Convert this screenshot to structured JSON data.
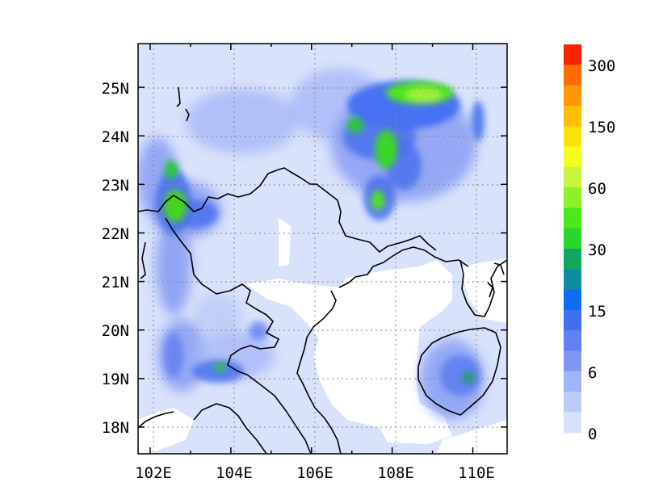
{
  "chart_data": {
    "type": "heatmap",
    "map": true,
    "grid": true,
    "lon_range": [
      101.7,
      110.85
    ],
    "lat_range": [
      17.45,
      25.9
    ],
    "x_ticks": [
      "102E",
      "104E",
      "106E",
      "108E",
      "110E"
    ],
    "y_ticks": [
      "25N",
      "24N",
      "23N",
      "22N",
      "21N",
      "20N",
      "19N",
      "18N"
    ],
    "colorbar": {
      "labels": [
        "300",
        "150",
        "60",
        "30",
        "15",
        "6",
        "0"
      ],
      "colors": [
        "#ff2200",
        "#ff6a00",
        "#ff9600",
        "#ffbe00",
        "#ffe200",
        "#f4ff20",
        "#c8f53c",
        "#8ef028",
        "#4be81a",
        "#28d828",
        "#10a860",
        "#0c8c9c",
        "#0c6cf4",
        "#4070f0",
        "#6480f0",
        "#8296f4",
        "#a0b4f8",
        "#bccaf8",
        "#d8e2fb"
      ]
    },
    "features": {
      "high_zones": [
        {
          "label": "102.6E 22.6N",
          "lon": 102.6,
          "lat": 22.6,
          "level": 45
        },
        {
          "label": "102.5E 23.3N",
          "lon": 102.5,
          "lat": 23.3,
          "level": 35
        },
        {
          "label": "109.0E 24.9N",
          "lon": 109.0,
          "lat": 24.9,
          "level": 50
        },
        {
          "label": "107.8E 23.9N",
          "lon": 107.8,
          "lat": 23.9,
          "level": 40
        },
        {
          "label": "107.5E 22.7N",
          "lon": 107.5,
          "lat": 22.7,
          "level": 40
        },
        {
          "label": "103.7E 19.2N",
          "lon": 103.7,
          "lat": 19.2,
          "level": 20
        },
        {
          "label": "109.8E 19.0N",
          "lon": 109.8,
          "lat": 19.0,
          "level": 20
        }
      ]
    }
  }
}
